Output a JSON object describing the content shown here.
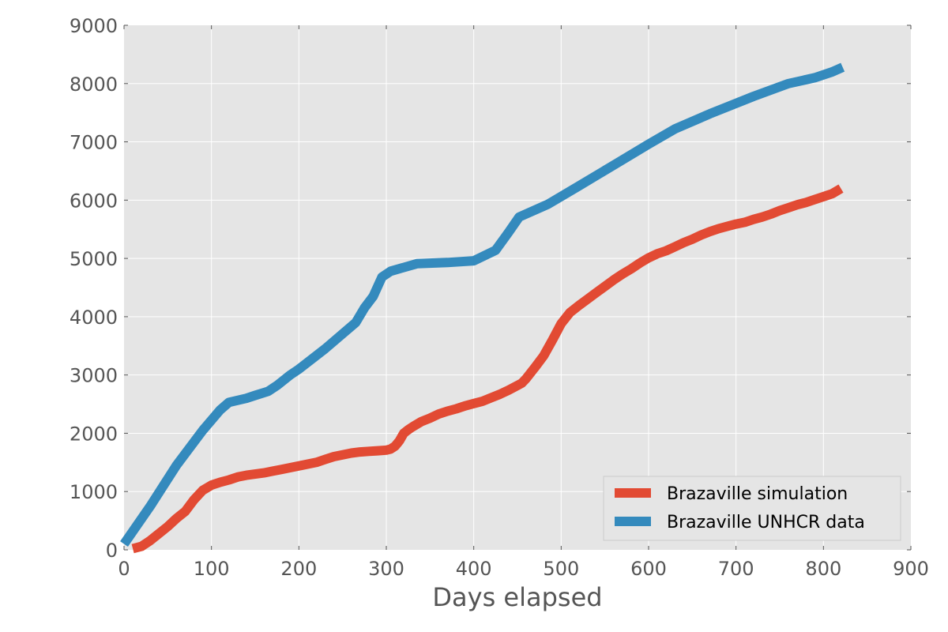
{
  "chart_data": {
    "type": "line",
    "xlabel": "Days elapsed",
    "ylabel": "",
    "xlim": [
      0,
      900
    ],
    "ylim": [
      0,
      9000
    ],
    "xticks": [
      0,
      100,
      200,
      300,
      400,
      500,
      600,
      700,
      800,
      900
    ],
    "yticks": [
      0,
      1000,
      2000,
      3000,
      4000,
      5000,
      6000,
      7000,
      8000,
      9000
    ],
    "grid": true,
    "legend_position": "bottom-right",
    "background": "#e5e5e5",
    "series": [
      {
        "name": "Brazaville simulation",
        "color": "#e24a33",
        "x": [
          10,
          20,
          30,
          40,
          50,
          60,
          70,
          80,
          90,
          100,
          110,
          120,
          130,
          140,
          150,
          160,
          170,
          180,
          190,
          200,
          210,
          220,
          230,
          240,
          250,
          260,
          270,
          280,
          290,
          300,
          305,
          310,
          315,
          320,
          325,
          330,
          340,
          350,
          360,
          370,
          380,
          390,
          400,
          410,
          420,
          430,
          440,
          450,
          455,
          460,
          470,
          480,
          490,
          500,
          510,
          520,
          530,
          540,
          550,
          560,
          570,
          580,
          590,
          600,
          610,
          620,
          630,
          640,
          650,
          660,
          670,
          680,
          690,
          700,
          710,
          720,
          730,
          740,
          750,
          760,
          770,
          780,
          790,
          800,
          810,
          820
        ],
        "y": [
          20,
          60,
          160,
          280,
          400,
          540,
          660,
          860,
          1020,
          1110,
          1160,
          1200,
          1250,
          1280,
          1300,
          1320,
          1350,
          1380,
          1410,
          1440,
          1470,
          1500,
          1550,
          1600,
          1630,
          1660,
          1680,
          1690,
          1700,
          1710,
          1730,
          1780,
          1870,
          2000,
          2060,
          2110,
          2200,
          2260,
          2330,
          2380,
          2420,
          2470,
          2510,
          2550,
          2610,
          2670,
          2740,
          2820,
          2860,
          2940,
          3130,
          3330,
          3600,
          3880,
          4070,
          4190,
          4300,
          4410,
          4520,
          4630,
          4730,
          4820,
          4920,
          5010,
          5080,
          5130,
          5200,
          5270,
          5330,
          5400,
          5460,
          5510,
          5550,
          5590,
          5620,
          5670,
          5710,
          5760,
          5820,
          5870,
          5920,
          5960,
          6010,
          6060,
          6110,
          6200
        ]
      },
      {
        "name": "Brazaville UNHCR data",
        "color": "#348abd",
        "x": [
          0,
          30,
          60,
          90,
          110,
          120,
          140,
          150,
          165,
          175,
          190,
          200,
          230,
          265,
          275,
          285,
          295,
          305,
          335,
          370,
          400,
          425,
          440,
          452,
          485,
          520,
          560,
          600,
          630,
          670,
          720,
          760,
          790,
          810,
          822
        ],
        "y": [
          100,
          750,
          1450,
          2050,
          2400,
          2530,
          2600,
          2650,
          2720,
          2820,
          3000,
          3100,
          3450,
          3900,
          4150,
          4350,
          4680,
          4780,
          4910,
          4930,
          4960,
          5140,
          5450,
          5710,
          5930,
          6240,
          6600,
          6960,
          7220,
          7480,
          7780,
          8000,
          8100,
          8200,
          8280
        ]
      }
    ]
  }
}
